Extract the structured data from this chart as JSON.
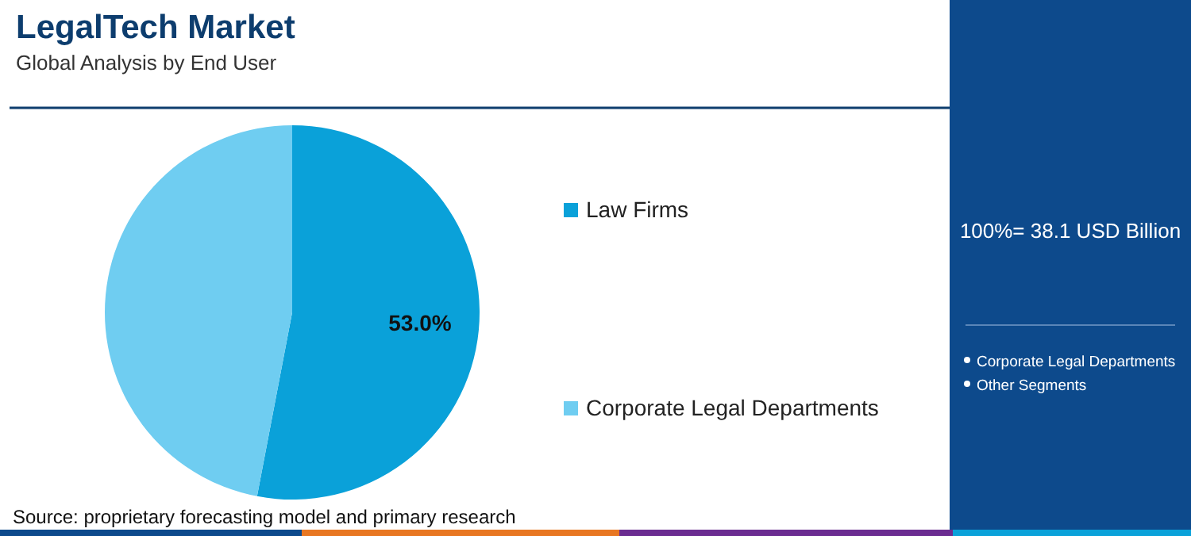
{
  "chart_data": {
    "type": "pie",
    "title": "LegalTech Market",
    "subtitle": "Global Analysis by End User",
    "categories": [
      "Law Firms",
      "Corporate Legal Departments"
    ],
    "values": [
      53.0,
      47.0
    ],
    "colors": [
      "#0aa1d9",
      "#6fcdf1"
    ],
    "value_labels": [
      "53.0%",
      null
    ],
    "legend": "right",
    "annotations": [
      "100%= 38.1 USD Billion",
      "Corporate Legal Departments",
      "Other Segments",
      "Source: proprietary forecasting model and primary research"
    ]
  }
}
